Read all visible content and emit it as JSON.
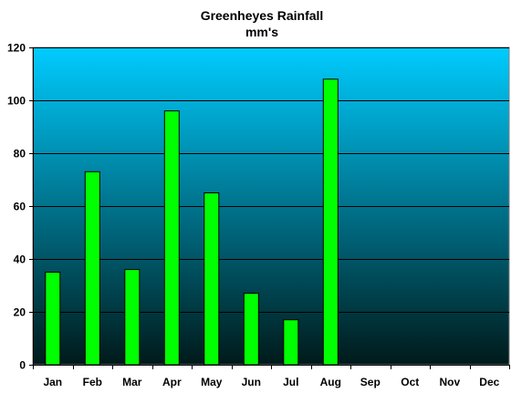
{
  "chart_data": {
    "type": "bar",
    "title": "Greenheyes Rainfall",
    "subtitle": "mm's",
    "xlabel": "",
    "ylabel": "",
    "categories": [
      "Jan",
      "Feb",
      "Mar",
      "Apr",
      "May",
      "Jun",
      "Jul",
      "Aug",
      "Sep",
      "Oct",
      "Nov",
      "Dec"
    ],
    "values": [
      35,
      73,
      36,
      96,
      65,
      27,
      17,
      108,
      null,
      null,
      null,
      null
    ],
    "ylim": [
      0,
      120
    ],
    "yticks": [
      0,
      20,
      40,
      60,
      80,
      100,
      120
    ],
    "grid": true,
    "legend": "none",
    "colors": {
      "bar_fill": "#00ff00",
      "bar_stroke": "#000000",
      "plot_bg_top": "#00ccff",
      "plot_bg_bottom": "#001a1a",
      "gridline": "#000000"
    }
  }
}
